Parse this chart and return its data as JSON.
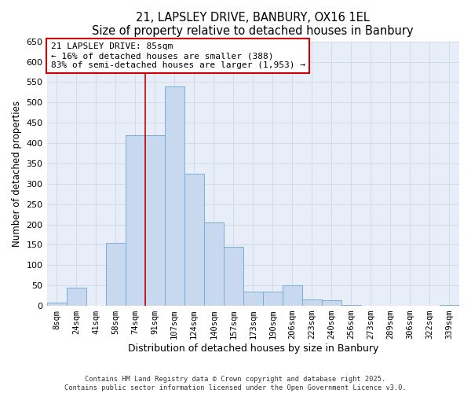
{
  "title": "21, LAPSLEY DRIVE, BANBURY, OX16 1EL",
  "subtitle": "Size of property relative to detached houses in Banbury",
  "xlabel": "Distribution of detached houses by size in Banbury",
  "ylabel": "Number of detached properties",
  "bar_labels": [
    "8sqm",
    "24sqm",
    "41sqm",
    "58sqm",
    "74sqm",
    "91sqm",
    "107sqm",
    "124sqm",
    "140sqm",
    "157sqm",
    "173sqm",
    "190sqm",
    "206sqm",
    "223sqm",
    "240sqm",
    "256sqm",
    "273sqm",
    "289sqm",
    "306sqm",
    "322sqm",
    "339sqm"
  ],
  "bar_values": [
    8,
    45,
    0,
    155,
    420,
    420,
    540,
    325,
    205,
    145,
    35,
    35,
    50,
    15,
    13,
    3,
    0,
    0,
    0,
    0,
    3
  ],
  "bar_color": "#c8d8ee",
  "bar_edge_color": "#7aaed6",
  "grid_color": "#d0d8e8",
  "annotation_box_color": "#cc0000",
  "vline_color": "#cc0000",
  "vline_x_index": 5,
  "annotation_title": "21 LAPSLEY DRIVE: 85sqm",
  "annotation_line1": "← 16% of detached houses are smaller (388)",
  "annotation_line2": "83% of semi-detached houses are larger (1,953) →",
  "ylim": [
    0,
    650
  ],
  "yticks": [
    0,
    50,
    100,
    150,
    200,
    250,
    300,
    350,
    400,
    450,
    500,
    550,
    600,
    650
  ],
  "footer_line1": "Contains HM Land Registry data © Crown copyright and database right 2025.",
  "footer_line2": "Contains public sector information licensed under the Open Government Licence v3.0.",
  "bg_color": "#ffffff",
  "plot_bg_color": "#e8eef8"
}
